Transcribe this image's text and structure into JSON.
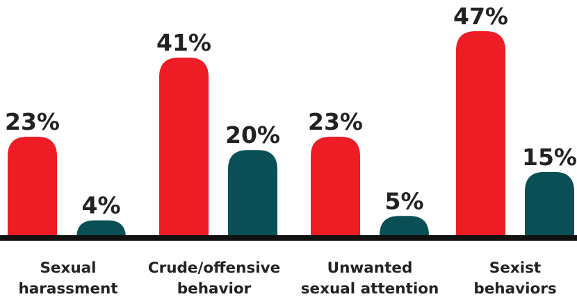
{
  "chart_data": {
    "type": "bar",
    "categories": [
      [
        "Sexual",
        "harassment"
      ],
      [
        "Crude/offensive",
        "behavior"
      ],
      [
        "Unwanted",
        "sexual attention"
      ],
      [
        "Sexist",
        "behaviors"
      ]
    ],
    "series": [
      {
        "color": "#ee1c25",
        "values": [
          23,
          41,
          23,
          47
        ],
        "labels": [
          "23%",
          "41%",
          "23%",
          "47%"
        ]
      },
      {
        "color": "#0b4f56",
        "values": [
          4,
          20,
          5,
          15
        ],
        "labels": [
          "4%",
          "20%",
          "5%",
          "15%"
        ]
      }
    ],
    "ylim": [
      0,
      47
    ],
    "grid": false,
    "baseline_color": "#111111"
  }
}
